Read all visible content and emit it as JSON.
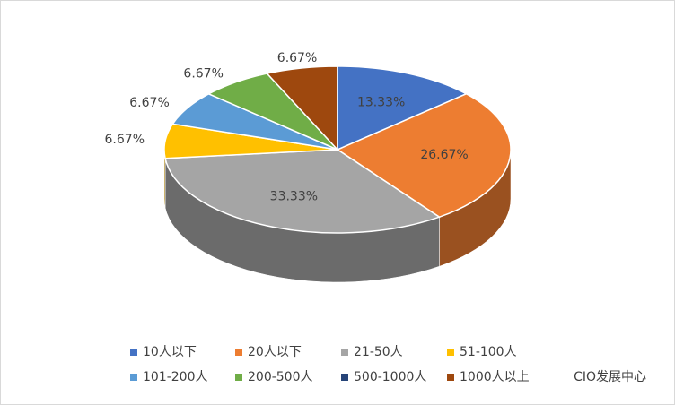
{
  "chart_data": {
    "type": "pie",
    "categories": [
      "10人以下",
      "20人以下",
      "21-50人",
      "51-100人",
      "101-200人",
      "200-500人",
      "500-1000人",
      "1000人以上"
    ],
    "values": [
      13.33,
      26.67,
      33.33,
      6.67,
      6.67,
      6.67,
      0,
      6.67
    ],
    "value_labels": [
      "13.33%",
      "26.67%",
      "33.33%",
      "6.67%",
      "6.67%",
      "6.67%",
      null,
      "6.67%"
    ],
    "colors": [
      "#4472c4",
      "#ed7d31",
      "#a5a5a5",
      "#ffc000",
      "#5b9bd5",
      "#70ad47",
      "#264478",
      "#9e480e"
    ],
    "legend": "bottom",
    "watermark": "CIO发展中心"
  }
}
